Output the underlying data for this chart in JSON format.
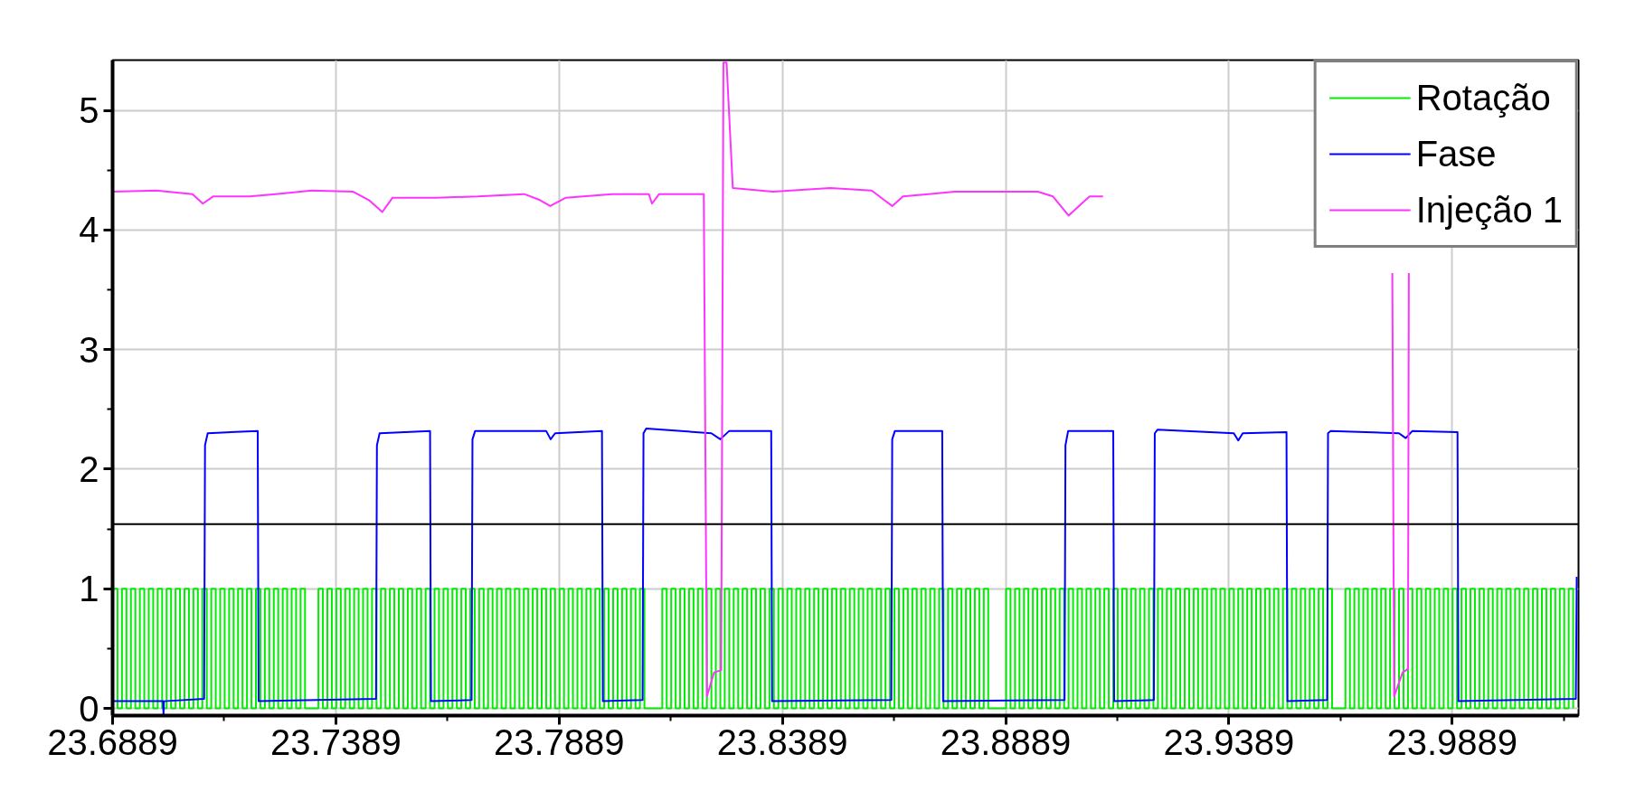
{
  "chart_data": {
    "type": "line",
    "xlim": [
      23.6889,
      24.0172
    ],
    "ylim": [
      -0.06,
      5.42
    ],
    "xticks": [
      23.6889,
      {
        "value": 23.7139,
        "label": null
      },
      23.7389,
      {
        "value": 23.7639,
        "label": null
      },
      23.7889,
      {
        "value": 23.8139,
        "label": null
      },
      23.8389,
      {
        "value": 23.8639,
        "label": null
      },
      23.8889,
      {
        "value": 23.9139,
        "label": null
      },
      23.9389,
      {
        "value": 23.9639,
        "label": null
      },
      23.9889,
      {
        "value": 24.0139,
        "label": null
      }
    ],
    "yticks": [
      0,
      {
        "value": 0.5,
        "label": null
      },
      1,
      {
        "value": 1.5,
        "label": null
      },
      2,
      {
        "value": 2.5,
        "label": null
      },
      3,
      {
        "value": 3.5,
        "label": null
      },
      4,
      {
        "value": 4.5,
        "label": null
      },
      5
    ],
    "grid": true,
    "legend": "top right",
    "ref_lines": [
      {
        "axis": "y",
        "value": 1.54,
        "color": "#000000"
      }
    ],
    "series": [
      {
        "name": "Rotação",
        "type": "step",
        "color": "#00ee00",
        "x": [
          23.689,
          23.69,
          23.691,
          23.692,
          23.693,
          23.694,
          23.695,
          23.696,
          23.697,
          23.698,
          23.699,
          23.7,
          23.701,
          23.702,
          23.703,
          23.704,
          23.705,
          23.706,
          23.707,
          23.708,
          23.709,
          23.71,
          23.711,
          23.712,
          23.713,
          23.714,
          23.715,
          23.716,
          23.717,
          23.718,
          23.719,
          23.72,
          23.721,
          23.722,
          23.723,
          23.724,
          23.725,
          23.726,
          23.727,
          23.728,
          23.729,
          23.73,
          23.731,
          23.732,
          23.735,
          23.736,
          23.737,
          23.738,
          23.739,
          23.74,
          23.741,
          23.742,
          23.743,
          23.744,
          23.745,
          23.746,
          23.747,
          23.748,
          23.749,
          23.75,
          23.751,
          23.752,
          23.753,
          23.754,
          23.755,
          23.756,
          23.757,
          23.758,
          23.759,
          23.76,
          23.761,
          23.762,
          23.763,
          23.764,
          23.765,
          23.766,
          23.767,
          23.768,
          23.769,
          23.77,
          23.771,
          23.772,
          23.773,
          23.774,
          23.775,
          23.776,
          23.777,
          23.778,
          23.779,
          23.78,
          23.781,
          23.782,
          23.783,
          23.784,
          23.785,
          23.786,
          23.787,
          23.788,
          23.789,
          23.79,
          23.791,
          23.792,
          23.793,
          23.794,
          23.795,
          23.796,
          23.797,
          23.798,
          23.799,
          23.8,
          23.801,
          23.802,
          23.803,
          23.804,
          23.805,
          23.806,
          23.807,
          23.808,
          23.812,
          23.813,
          23.814,
          23.815,
          23.816,
          23.817,
          23.818,
          23.819,
          23.82,
          23.821,
          23.822,
          23.823,
          23.824,
          23.825,
          23.826,
          23.827,
          23.828,
          23.829,
          23.83,
          23.831,
          23.832,
          23.833,
          23.834,
          23.835,
          23.836,
          23.837,
          23.838,
          23.839,
          23.84,
          23.841,
          23.842,
          23.843,
          23.844,
          23.845,
          23.846,
          23.847,
          23.848,
          23.849,
          23.85,
          23.851,
          23.852,
          23.853,
          23.854,
          23.855,
          23.856,
          23.857,
          23.858,
          23.859,
          23.86,
          23.861,
          23.862,
          23.863,
          23.864,
          23.865,
          23.866,
          23.867,
          23.868,
          23.869,
          23.87,
          23.871,
          23.872,
          23.873,
          23.874,
          23.875,
          23.876,
          23.877,
          23.878,
          23.879,
          23.88,
          23.881,
          23.882,
          23.883,
          23.884,
          23.885,
          23.889,
          23.89,
          23.891,
          23.892,
          23.893,
          23.894,
          23.895,
          23.896,
          23.897,
          23.898,
          23.899,
          23.9,
          23.901,
          23.902,
          23.903,
          23.904,
          23.905,
          23.906,
          23.907,
          23.908,
          23.909,
          23.91,
          23.911,
          23.912,
          23.913,
          23.914,
          23.915,
          23.916,
          23.917,
          23.918,
          23.919,
          23.92,
          23.921,
          23.922,
          23.923,
          23.924,
          23.925,
          23.926,
          23.927,
          23.928,
          23.929,
          23.93,
          23.931,
          23.932,
          23.933,
          23.934,
          23.935,
          23.936,
          23.937,
          23.938,
          23.939,
          23.94,
          23.941,
          23.942,
          23.943,
          23.944,
          23.945,
          23.946,
          23.947,
          23.948,
          23.949,
          23.95,
          23.951,
          23.952,
          23.953,
          23.954,
          23.955,
          23.956,
          23.957,
          23.958,
          23.959,
          23.96,
          23.961,
          23.962,
          23.965,
          23.966,
          23.967,
          23.968,
          23.969,
          23.97,
          23.971,
          23.972,
          23.973,
          23.974,
          23.975,
          23.976,
          23.977,
          23.978,
          23.979,
          23.98,
          23.981,
          23.982,
          23.983,
          23.984,
          23.985,
          23.986,
          23.987,
          23.988,
          23.989,
          23.99,
          23.991,
          23.992,
          23.993,
          23.994,
          23.995,
          23.996,
          23.997,
          23.998,
          23.999,
          24.0,
          24.001,
          24.002,
          24.003,
          24.004,
          24.005,
          24.006,
          24.007,
          24.008,
          24.009,
          24.01,
          24.011,
          24.012,
          24.013,
          24.014,
          24.015,
          24.016
        ],
        "values": [
          1,
          0,
          1,
          0,
          1,
          0,
          1,
          0,
          1,
          0,
          1,
          0,
          1,
          0,
          1,
          0,
          1,
          0,
          1,
          0,
          1,
          0,
          1,
          0,
          1,
          0,
          1,
          0,
          1,
          0,
          1,
          0,
          1,
          0,
          1,
          0,
          1,
          0,
          1,
          0,
          1,
          0,
          1,
          0,
          1,
          0,
          1,
          0,
          1,
          0,
          1,
          0,
          1,
          0,
          1,
          0,
          1,
          0,
          1,
          0,
          1,
          0,
          1,
          0,
          1,
          0,
          1,
          0,
          1,
          0,
          1,
          0,
          1,
          0,
          1,
          0,
          1,
          0,
          1,
          0,
          1,
          0,
          1,
          0,
          1,
          0,
          1,
          0,
          1,
          0,
          1,
          0,
          1,
          0,
          1,
          0,
          1,
          0,
          1,
          0,
          1,
          0,
          1,
          0,
          1,
          0,
          1,
          0,
          1,
          0,
          1,
          0,
          1,
          0,
          1,
          0,
          1,
          0,
          1,
          0,
          1,
          0,
          1,
          0,
          1,
          0,
          1,
          0,
          1,
          0,
          1,
          0,
          1,
          0,
          1,
          0,
          1,
          0,
          1,
          0,
          1,
          0,
          1,
          0,
          1,
          0,
          1,
          0,
          1,
          0,
          1,
          0,
          1,
          0,
          1,
          0,
          1,
          0,
          1,
          0,
          1,
          0,
          1,
          0,
          1,
          0,
          1,
          0,
          1,
          0,
          1,
          0,
          1,
          0,
          1,
          0,
          1,
          0,
          1,
          0,
          1,
          0,
          1,
          0,
          1,
          0,
          1,
          0,
          1,
          0,
          1,
          0,
          1,
          0,
          1,
          0,
          1,
          0,
          1,
          0,
          1,
          0,
          1,
          0,
          1,
          0,
          1,
          0,
          1,
          0,
          1,
          0,
          1,
          0,
          1,
          0,
          1,
          0,
          1,
          0,
          1,
          0,
          1,
          0,
          1,
          0,
          1,
          0,
          1,
          0,
          1,
          0,
          1,
          0,
          1,
          0,
          1,
          0,
          1,
          0,
          1,
          0,
          1,
          0,
          1,
          0,
          1,
          0,
          1,
          0,
          1,
          0,
          1,
          0,
          1,
          0,
          1,
          0,
          1,
          0,
          1,
          0,
          1,
          0,
          1,
          0,
          1,
          0,
          1,
          0,
          1,
          0,
          1,
          0,
          1,
          0,
          1,
          0,
          1,
          0,
          1,
          0,
          1,
          0,
          1,
          0,
          1,
          0,
          1,
          0,
          1,
          0,
          1,
          0,
          1,
          0,
          1,
          0,
          1,
          0,
          1,
          0,
          1,
          0,
          1,
          0,
          1,
          0,
          1,
          0,
          1,
          0,
          1,
          0,
          1,
          0,
          1,
          0
        ]
      },
      {
        "name": "Fase",
        "color": "#0000ff",
        "x": [
          23.6889,
          23.7002,
          23.7003,
          23.7004,
          23.7094,
          23.7096,
          23.7102,
          23.7214,
          23.7216,
          23.7479,
          23.7481,
          23.7487,
          23.76,
          23.7602,
          23.7693,
          23.7695,
          23.7701,
          23.786,
          23.787,
          23.788,
          23.7985,
          23.7987,
          23.8076,
          23.8078,
          23.8084,
          23.823,
          23.825,
          23.827,
          23.8364,
          23.8366,
          23.8633,
          23.8635,
          23.8641,
          23.8747,
          23.8749,
          23.9021,
          23.9023,
          23.9029,
          23.913,
          23.9132,
          23.9221,
          23.9223,
          23.9229,
          23.94,
          23.941,
          23.942,
          23.9518,
          23.952,
          23.9609,
          23.9611,
          23.9617,
          23.977,
          23.9785,
          23.98,
          23.9901,
          23.9903,
          24.0166,
          24.0168
        ],
        "values": [
          0.06,
          0.06,
          -0.05,
          0.06,
          0.08,
          2.2,
          2.3,
          2.32,
          0.06,
          0.08,
          2.2,
          2.3,
          2.32,
          0.06,
          0.07,
          2.25,
          2.32,
          2.32,
          2.25,
          2.3,
          2.32,
          0.06,
          0.07,
          2.3,
          2.34,
          2.3,
          2.25,
          2.32,
          2.32,
          0.06,
          0.07,
          2.25,
          2.32,
          2.32,
          0.06,
          0.07,
          2.2,
          2.32,
          2.32,
          0.06,
          0.07,
          2.3,
          2.33,
          2.3,
          2.24,
          2.3,
          2.31,
          0.06,
          0.07,
          2.3,
          2.32,
          2.3,
          2.26,
          2.32,
          2.31,
          0.06,
          0.08,
          1.1
        ]
      },
      {
        "name": "Injeção 1",
        "color": "#ff33ff",
        "x": [
          23.6889,
          23.6987,
          23.7068,
          23.7091,
          23.7114,
          23.7196,
          23.7254,
          23.7335,
          23.7428,
          23.7463,
          23.7493,
          23.7516,
          23.7614,
          23.7707,
          23.7811,
          23.7846,
          23.7869,
          23.7904,
          23.8008,
          23.809,
          23.8097,
          23.8113,
          23.8213,
          23.822,
          23.8236,
          23.8252,
          23.8257,
          23.8264,
          23.8278,
          23.8368,
          23.8496,
          23.8589,
          23.8617,
          23.8635,
          23.8659,
          23.8775,
          23.8961,
          23.8995,
          23.903,
          23.9053,
          23.9077,
          23.9107,
          23.94,
          23.9755,
          23.9759,
          23.9778,
          23.979,
          23.9792
        ],
        "values": [
          4.32,
          4.33,
          4.3,
          4.22,
          4.28,
          4.28,
          4.3,
          4.33,
          4.32,
          4.25,
          4.15,
          4.27,
          4.27,
          4.28,
          4.3,
          4.25,
          4.2,
          4.27,
          4.3,
          4.3,
          4.22,
          4.3,
          4.3,
          0.1,
          0.3,
          0.32,
          5.4,
          5.4,
          4.35,
          4.32,
          4.35,
          4.33,
          4.25,
          4.2,
          4.28,
          4.32,
          4.32,
          4.28,
          4.12,
          4.2,
          4.28,
          4.28,
          null,
          3.64,
          0.1,
          0.3,
          0.33,
          3.64
        ]
      }
    ]
  }
}
